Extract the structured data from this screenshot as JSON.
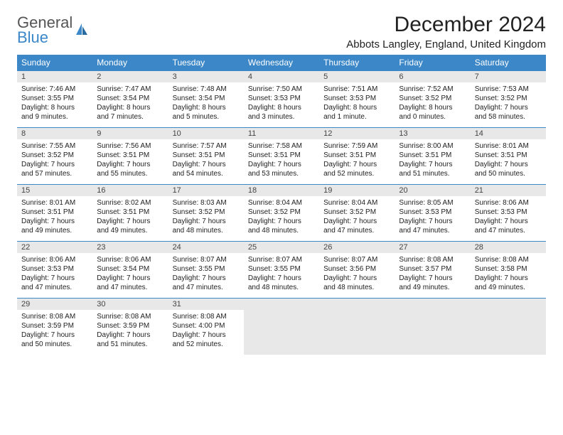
{
  "brand": {
    "line1": "General",
    "line2": "Blue"
  },
  "title": "December 2024",
  "location": "Abbots Langley, England, United Kingdom",
  "colors": {
    "header_bg": "#3b87c8",
    "header_fg": "#ffffff",
    "daynum_bg": "#e8e8e8",
    "border": "#3b87c8",
    "body_bg": "#ffffff",
    "text": "#222222"
  },
  "day_headers": [
    "Sunday",
    "Monday",
    "Tuesday",
    "Wednesday",
    "Thursday",
    "Friday",
    "Saturday"
  ],
  "weeks": [
    {
      "nums": [
        "1",
        "2",
        "3",
        "4",
        "5",
        "6",
        "7"
      ],
      "cells": [
        {
          "sunrise": "Sunrise: 7:46 AM",
          "sunset": "Sunset: 3:55 PM",
          "d1": "Daylight: 8 hours",
          "d2": "and 9 minutes."
        },
        {
          "sunrise": "Sunrise: 7:47 AM",
          "sunset": "Sunset: 3:54 PM",
          "d1": "Daylight: 8 hours",
          "d2": "and 7 minutes."
        },
        {
          "sunrise": "Sunrise: 7:48 AM",
          "sunset": "Sunset: 3:54 PM",
          "d1": "Daylight: 8 hours",
          "d2": "and 5 minutes."
        },
        {
          "sunrise": "Sunrise: 7:50 AM",
          "sunset": "Sunset: 3:53 PM",
          "d1": "Daylight: 8 hours",
          "d2": "and 3 minutes."
        },
        {
          "sunrise": "Sunrise: 7:51 AM",
          "sunset": "Sunset: 3:53 PM",
          "d1": "Daylight: 8 hours",
          "d2": "and 1 minute."
        },
        {
          "sunrise": "Sunrise: 7:52 AM",
          "sunset": "Sunset: 3:52 PM",
          "d1": "Daylight: 8 hours",
          "d2": "and 0 minutes."
        },
        {
          "sunrise": "Sunrise: 7:53 AM",
          "sunset": "Sunset: 3:52 PM",
          "d1": "Daylight: 7 hours",
          "d2": "and 58 minutes."
        }
      ]
    },
    {
      "nums": [
        "8",
        "9",
        "10",
        "11",
        "12",
        "13",
        "14"
      ],
      "cells": [
        {
          "sunrise": "Sunrise: 7:55 AM",
          "sunset": "Sunset: 3:52 PM",
          "d1": "Daylight: 7 hours",
          "d2": "and 57 minutes."
        },
        {
          "sunrise": "Sunrise: 7:56 AM",
          "sunset": "Sunset: 3:51 PM",
          "d1": "Daylight: 7 hours",
          "d2": "and 55 minutes."
        },
        {
          "sunrise": "Sunrise: 7:57 AM",
          "sunset": "Sunset: 3:51 PM",
          "d1": "Daylight: 7 hours",
          "d2": "and 54 minutes."
        },
        {
          "sunrise": "Sunrise: 7:58 AM",
          "sunset": "Sunset: 3:51 PM",
          "d1": "Daylight: 7 hours",
          "d2": "and 53 minutes."
        },
        {
          "sunrise": "Sunrise: 7:59 AM",
          "sunset": "Sunset: 3:51 PM",
          "d1": "Daylight: 7 hours",
          "d2": "and 52 minutes."
        },
        {
          "sunrise": "Sunrise: 8:00 AM",
          "sunset": "Sunset: 3:51 PM",
          "d1": "Daylight: 7 hours",
          "d2": "and 51 minutes."
        },
        {
          "sunrise": "Sunrise: 8:01 AM",
          "sunset": "Sunset: 3:51 PM",
          "d1": "Daylight: 7 hours",
          "d2": "and 50 minutes."
        }
      ]
    },
    {
      "nums": [
        "15",
        "16",
        "17",
        "18",
        "19",
        "20",
        "21"
      ],
      "cells": [
        {
          "sunrise": "Sunrise: 8:01 AM",
          "sunset": "Sunset: 3:51 PM",
          "d1": "Daylight: 7 hours",
          "d2": "and 49 minutes."
        },
        {
          "sunrise": "Sunrise: 8:02 AM",
          "sunset": "Sunset: 3:51 PM",
          "d1": "Daylight: 7 hours",
          "d2": "and 49 minutes."
        },
        {
          "sunrise": "Sunrise: 8:03 AM",
          "sunset": "Sunset: 3:52 PM",
          "d1": "Daylight: 7 hours",
          "d2": "and 48 minutes."
        },
        {
          "sunrise": "Sunrise: 8:04 AM",
          "sunset": "Sunset: 3:52 PM",
          "d1": "Daylight: 7 hours",
          "d2": "and 48 minutes."
        },
        {
          "sunrise": "Sunrise: 8:04 AM",
          "sunset": "Sunset: 3:52 PM",
          "d1": "Daylight: 7 hours",
          "d2": "and 47 minutes."
        },
        {
          "sunrise": "Sunrise: 8:05 AM",
          "sunset": "Sunset: 3:53 PM",
          "d1": "Daylight: 7 hours",
          "d2": "and 47 minutes."
        },
        {
          "sunrise": "Sunrise: 8:06 AM",
          "sunset": "Sunset: 3:53 PM",
          "d1": "Daylight: 7 hours",
          "d2": "and 47 minutes."
        }
      ]
    },
    {
      "nums": [
        "22",
        "23",
        "24",
        "25",
        "26",
        "27",
        "28"
      ],
      "cells": [
        {
          "sunrise": "Sunrise: 8:06 AM",
          "sunset": "Sunset: 3:53 PM",
          "d1": "Daylight: 7 hours",
          "d2": "and 47 minutes."
        },
        {
          "sunrise": "Sunrise: 8:06 AM",
          "sunset": "Sunset: 3:54 PM",
          "d1": "Daylight: 7 hours",
          "d2": "and 47 minutes."
        },
        {
          "sunrise": "Sunrise: 8:07 AM",
          "sunset": "Sunset: 3:55 PM",
          "d1": "Daylight: 7 hours",
          "d2": "and 47 minutes."
        },
        {
          "sunrise": "Sunrise: 8:07 AM",
          "sunset": "Sunset: 3:55 PM",
          "d1": "Daylight: 7 hours",
          "d2": "and 48 minutes."
        },
        {
          "sunrise": "Sunrise: 8:07 AM",
          "sunset": "Sunset: 3:56 PM",
          "d1": "Daylight: 7 hours",
          "d2": "and 48 minutes."
        },
        {
          "sunrise": "Sunrise: 8:08 AM",
          "sunset": "Sunset: 3:57 PM",
          "d1": "Daylight: 7 hours",
          "d2": "and 49 minutes."
        },
        {
          "sunrise": "Sunrise: 8:08 AM",
          "sunset": "Sunset: 3:58 PM",
          "d1": "Daylight: 7 hours",
          "d2": "and 49 minutes."
        }
      ]
    },
    {
      "nums": [
        "29",
        "30",
        "31",
        "",
        "",
        "",
        ""
      ],
      "cells": [
        {
          "sunrise": "Sunrise: 8:08 AM",
          "sunset": "Sunset: 3:59 PM",
          "d1": "Daylight: 7 hours",
          "d2": "and 50 minutes."
        },
        {
          "sunrise": "Sunrise: 8:08 AM",
          "sunset": "Sunset: 3:59 PM",
          "d1": "Daylight: 7 hours",
          "d2": "and 51 minutes."
        },
        {
          "sunrise": "Sunrise: 8:08 AM",
          "sunset": "Sunset: 4:00 PM",
          "d1": "Daylight: 7 hours",
          "d2": "and 52 minutes."
        },
        {
          "empty": true
        },
        {
          "empty": true
        },
        {
          "empty": true
        },
        {
          "empty": true
        }
      ]
    }
  ]
}
